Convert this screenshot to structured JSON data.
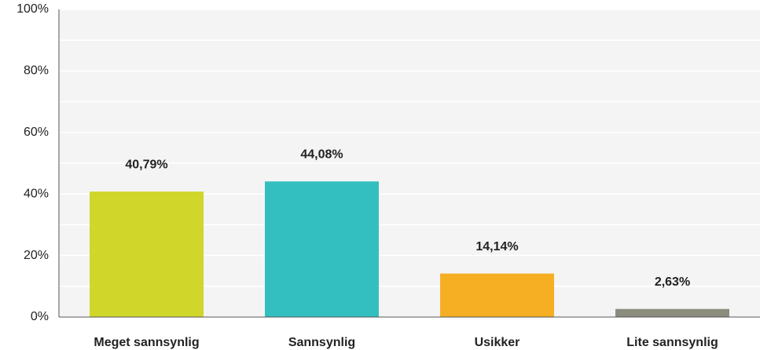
{
  "chart_data": {
    "type": "bar",
    "categories": [
      "Meget sannsynlig",
      "Sannsynlig",
      "Usikker",
      "Lite sannsynlig"
    ],
    "values": [
      40.79,
      44.08,
      14.14,
      2.63
    ],
    "value_labels": [
      "40,79%",
      "44,08%",
      "14,14%",
      "2,63%"
    ],
    "colors": [
      "#d0d62a",
      "#33bfbf",
      "#f6ae22",
      "#8b8c7e"
    ],
    "ylim": [
      0,
      100
    ],
    "yticks": [
      {
        "value": 0,
        "label": "0%"
      },
      {
        "value": 20,
        "label": "20%"
      },
      {
        "value": 40,
        "label": "40%"
      },
      {
        "value": 60,
        "label": "60%"
      },
      {
        "value": 80,
        "label": "80%"
      },
      {
        "value": 100,
        "label": "100%"
      }
    ],
    "minor_yticks": [
      10,
      30,
      50,
      70,
      90
    ],
    "grid": true
  }
}
